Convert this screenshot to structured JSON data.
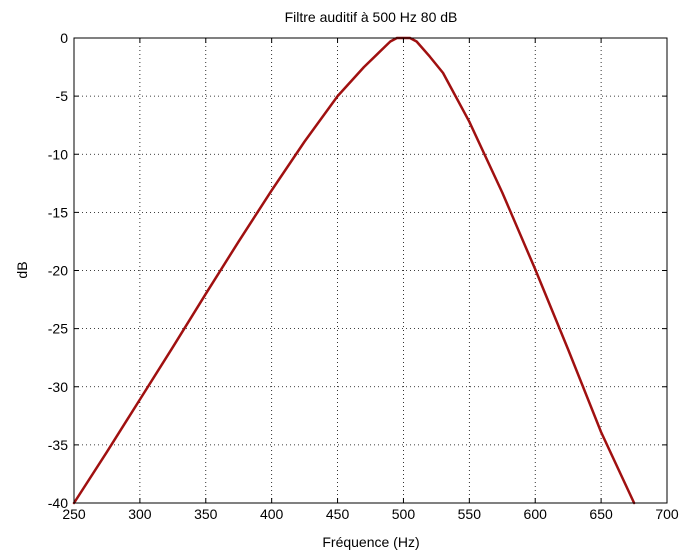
{
  "chart_data": {
    "type": "line",
    "title": "Filtre auditif à 500 Hz 80 dB",
    "xlabel": "Fréquence (Hz)",
    "ylabel": "dB",
    "xlim": [
      250,
      700
    ],
    "ylim": [
      -40,
      0
    ],
    "xticks": [
      250,
      300,
      350,
      400,
      450,
      500,
      550,
      600,
      650,
      700
    ],
    "yticks": [
      0,
      -5,
      -10,
      -15,
      -20,
      -25,
      -30,
      -35,
      -40
    ],
    "xtick_labels": [
      "250",
      "300",
      "350",
      "400",
      "450",
      "500",
      "550",
      "600",
      "650",
      "700"
    ],
    "ytick_labels": [
      "0",
      "-5",
      "-10",
      "-15",
      "-20",
      "-25",
      "-30",
      "-35",
      "-40"
    ],
    "grid": true,
    "series": [
      {
        "color": "#a01010",
        "x": [
          250,
          275,
          300,
          325,
          350,
          375,
          400,
          425,
          450,
          470,
          480,
          490,
          495,
          500,
          505,
          510,
          520,
          530,
          550,
          575,
          600,
          625,
          650,
          675
        ],
        "y": [
          -40,
          -35.6,
          -31.1,
          -26.6,
          -22.0,
          -17.5,
          -13.1,
          -8.9,
          -5.0,
          -2.5,
          -1.4,
          -0.3,
          0,
          0,
          0,
          -0.3,
          -1.6,
          -3.0,
          -7.2,
          -13.3,
          -19.9,
          -26.8,
          -33.9,
          -40
        ]
      }
    ]
  }
}
